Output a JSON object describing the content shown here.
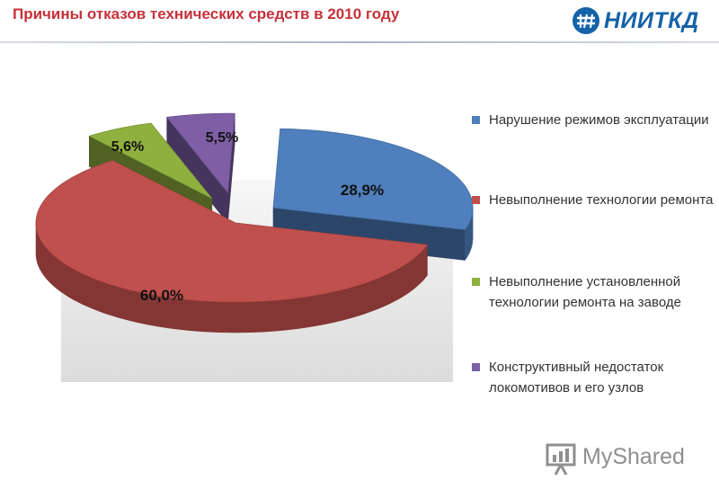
{
  "header": {
    "title": "Причины отказов технических средств в 2010 году",
    "logo_text": "НИИТКД"
  },
  "watermark": {
    "text": "MyShared"
  },
  "colors": {
    "title": "#c6313a",
    "logo": "#1462a8",
    "series": [
      "#4f7fbd",
      "#c0504d",
      "#8fb03f",
      "#7e5fa6"
    ]
  },
  "chart_data": {
    "type": "pie",
    "style": "3d-exploded",
    "legend_position": "right",
    "slices": [
      {
        "label": "Нарушение режимов эксплуатации",
        "value": 28.9,
        "value_label": "28,9%",
        "color": "#4f7fbd"
      },
      {
        "label": "Невыполнение технологии ремонта",
        "value": 60.0,
        "value_label": "60,0%",
        "color": "#c0504d"
      },
      {
        "label": "Невыполнение установленной технологии ремонта на заводе",
        "value": 5.6,
        "value_label": "5,6%",
        "color": "#8fb03f"
      },
      {
        "label": "Конструктивный недостаток  локомотивов и его узлов",
        "value": 5.5,
        "value_label": "5,5%",
        "color": "#7e5fa6"
      }
    ]
  }
}
